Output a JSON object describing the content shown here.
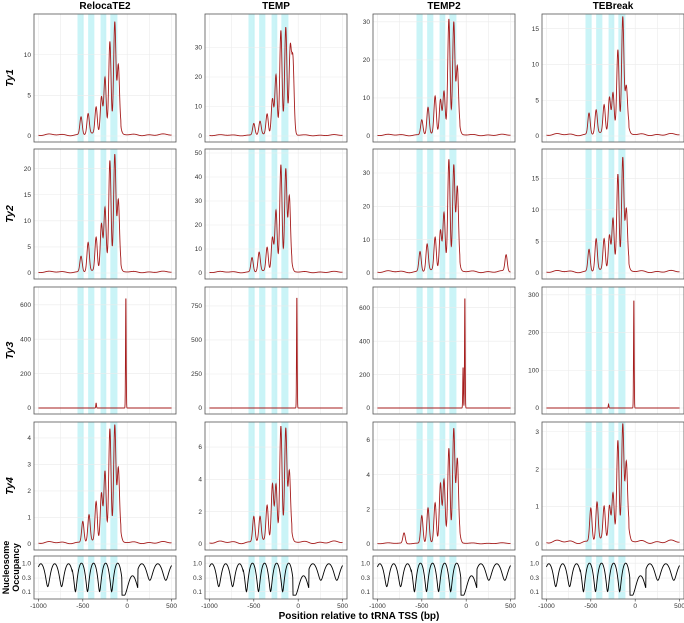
{
  "chart_data": {
    "type": "line",
    "x_axis": {
      "label": "Position relative to tRNA TSS (bp)",
      "ticks": [
        -1000,
        -500,
        0,
        500
      ],
      "range": [
        -1050,
        550
      ]
    },
    "highlight_bands": [
      [
        -560,
        -490
      ],
      [
        -440,
        -370
      ],
      [
        -300,
        -235
      ],
      [
        -190,
        -110
      ]
    ],
    "columns": [
      "RelocaTE2",
      "TEMP",
      "TEMP2",
      "TEBreak"
    ],
    "rows": [
      "Ty1",
      "Ty2",
      "Ty3",
      "Ty4"
    ],
    "colors": {
      "signal": "#a51c1c",
      "nucleosome": "#000000",
      "band": "#b8f0f4",
      "grid": "#ebebeb",
      "frame": "#555555"
    },
    "panels": [
      {
        "row": "Ty1",
        "col": "RelocaTE2",
        "yticks": [
          0,
          5,
          10
        ],
        "ymax": 14.5,
        "peaks": [
          [
            -520,
            2.2
          ],
          [
            -440,
            2.5
          ],
          [
            -350,
            3.3
          ],
          [
            -290,
            4.5
          ],
          [
            -250,
            6.8
          ],
          [
            -195,
            11.2
          ],
          [
            -140,
            13.5
          ],
          [
            -100,
            8.0
          ],
          [
            -70,
            0.4
          ]
        ]
      },
      {
        "row": "Ty1",
        "col": "TEMP",
        "yticks": [
          0,
          10,
          20,
          30
        ],
        "ymax": 40,
        "peaks": [
          [
            -500,
            4
          ],
          [
            -430,
            4.5
          ],
          [
            -350,
            7
          ],
          [
            -290,
            12
          ],
          [
            -250,
            20
          ],
          [
            -195,
            35
          ],
          [
            -140,
            36
          ],
          [
            -90,
            28
          ],
          [
            -60,
            25
          ],
          [
            -40,
            1
          ]
        ]
      },
      {
        "row": "Ty1",
        "col": "TEMP2",
        "yticks": [
          0,
          10,
          20,
          30
        ],
        "ymax": 31,
        "peaks": [
          [
            -500,
            4
          ],
          [
            -430,
            7
          ],
          [
            -350,
            10
          ],
          [
            -290,
            9
          ],
          [
            -250,
            11
          ],
          [
            -195,
            30
          ],
          [
            -140,
            29
          ],
          [
            -100,
            17
          ],
          [
            -70,
            1
          ]
        ]
      },
      {
        "row": "Ty1",
        "col": "TEBreak",
        "yticks": [
          0,
          5,
          10,
          15
        ],
        "ymax": 16.5,
        "peaks": [
          [
            -520,
            3
          ],
          [
            -440,
            3.3
          ],
          [
            -350,
            4
          ],
          [
            -290,
            5
          ],
          [
            -250,
            5.5
          ],
          [
            -195,
            11.5
          ],
          [
            -140,
            16
          ],
          [
            -100,
            6
          ],
          [
            -70,
            0.5
          ]
        ]
      },
      {
        "row": "Ty2",
        "col": "RelocaTE2",
        "yticks": [
          0,
          5,
          10,
          15,
          20
        ],
        "ymax": 23,
        "peaks": [
          [
            -520,
            3
          ],
          [
            -440,
            5.5
          ],
          [
            -350,
            6.5
          ],
          [
            -290,
            9
          ],
          [
            -250,
            12
          ],
          [
            -195,
            21
          ],
          [
            -140,
            22
          ],
          [
            -100,
            13
          ],
          [
            -70,
            0.5
          ]
        ]
      },
      {
        "row": "Ty2",
        "col": "TEMP",
        "yticks": [
          0,
          10,
          20,
          30,
          40,
          50
        ],
        "ymax": 50,
        "peaks": [
          [
            -520,
            6
          ],
          [
            -440,
            8
          ],
          [
            -350,
            10
          ],
          [
            -290,
            14
          ],
          [
            -250,
            25
          ],
          [
            -195,
            44
          ],
          [
            -140,
            42
          ],
          [
            -100,
            30
          ],
          [
            -70,
            2
          ]
        ]
      },
      {
        "row": "Ty2",
        "col": "TEMP2",
        "yticks": [
          0,
          10,
          20,
          30
        ],
        "ymax": 36,
        "peaks": [
          [
            -520,
            6
          ],
          [
            -440,
            8
          ],
          [
            -350,
            10
          ],
          [
            -290,
            12
          ],
          [
            -250,
            17
          ],
          [
            -195,
            33
          ],
          [
            -140,
            31
          ],
          [
            -100,
            24
          ],
          [
            -70,
            1
          ],
          [
            450,
            5
          ]
        ]
      },
      {
        "row": "Ty2",
        "col": "TEBreak",
        "yticks": [
          0,
          5,
          10,
          15
        ],
        "ymax": 19,
        "peaks": [
          [
            -520,
            3.5
          ],
          [
            -440,
            5
          ],
          [
            -350,
            5
          ],
          [
            -290,
            5.5
          ],
          [
            -250,
            8
          ],
          [
            -195,
            15
          ],
          [
            -140,
            17.5
          ],
          [
            -100,
            9
          ],
          [
            -70,
            0.5
          ]
        ]
      },
      {
        "row": "Ty3",
        "col": "RelocaTE2",
        "yticks": [
          0,
          200,
          400,
          600
        ],
        "ymax": 680,
        "peaks": [
          [
            -350,
            30
          ],
          [
            -15,
            660
          ]
        ]
      },
      {
        "row": "Ty3",
        "col": "TEMP",
        "yticks": [
          0,
          250,
          500,
          750
        ],
        "ymax": 860,
        "peaks": [
          [
            -15,
            840
          ]
        ]
      },
      {
        "row": "Ty3",
        "col": "TEMP2",
        "yticks": [
          0,
          200,
          400,
          600
        ],
        "ymax": 700,
        "peaks": [
          [
            -35,
            250
          ],
          [
            -15,
            680
          ]
        ]
      },
      {
        "row": "Ty3",
        "col": "TEBreak",
        "yticks": [
          0,
          100,
          200,
          300
        ],
        "ymax": 310,
        "peaks": [
          [
            -300,
            10
          ],
          [
            -15,
            295
          ]
        ]
      },
      {
        "row": "Ty4",
        "col": "RelocaTE2",
        "yticks": [
          0,
          1,
          2,
          3,
          4
        ],
        "ymax": 4.45,
        "peaks": [
          [
            -500,
            0.8
          ],
          [
            -430,
            1.0
          ],
          [
            -350,
            1.5
          ],
          [
            -290,
            1.8
          ],
          [
            -250,
            2.6
          ],
          [
            -195,
            4.2
          ],
          [
            -140,
            4.3
          ],
          [
            -100,
            2.6
          ],
          [
            -70,
            0.2
          ]
        ]
      },
      {
        "row": "Ty4",
        "col": "TEMP",
        "yticks": [
          0,
          2,
          4,
          6
        ],
        "ymax": 7.3,
        "peaks": [
          [
            -500,
            1.6
          ],
          [
            -430,
            1.5
          ],
          [
            -350,
            2.2
          ],
          [
            -290,
            3.5
          ],
          [
            -250,
            3.4
          ],
          [
            -195,
            7.0
          ],
          [
            -140,
            6.8
          ],
          [
            -100,
            4
          ],
          [
            -70,
            0.3
          ]
        ]
      },
      {
        "row": "Ty4",
        "col": "TEMP2",
        "yticks": [
          0,
          2,
          4,
          6
        ],
        "ymax": 6.8,
        "peaks": [
          [
            -700,
            0.6
          ],
          [
            -500,
            1.6
          ],
          [
            -430,
            2
          ],
          [
            -350,
            2.3
          ],
          [
            -290,
            3.4
          ],
          [
            -250,
            3.6
          ],
          [
            -195,
            5.4
          ],
          [
            -140,
            6.5
          ],
          [
            -100,
            4.7
          ],
          [
            -70,
            0.3
          ]
        ]
      },
      {
        "row": "Ty4",
        "col": "TEBreak",
        "yticks": [
          0,
          1,
          2,
          3
        ],
        "ymax": 3.15,
        "peaks": [
          [
            -500,
            0.9
          ],
          [
            -430,
            1.0
          ],
          [
            -350,
            0.9
          ],
          [
            -290,
            0.9
          ],
          [
            -250,
            1.2
          ],
          [
            -195,
            2.6
          ],
          [
            -140,
            3.0
          ],
          [
            -100,
            1.9
          ],
          [
            -70,
            0.2
          ]
        ]
      }
    ],
    "nucleosome_panel": {
      "label_line1": "Nucleosome",
      "label_line2": "Occupancy",
      "yticks": [
        "0.1",
        "0.3",
        "1.0"
      ],
      "ytick_values": [
        0.1,
        0.3,
        1.0
      ]
    }
  }
}
